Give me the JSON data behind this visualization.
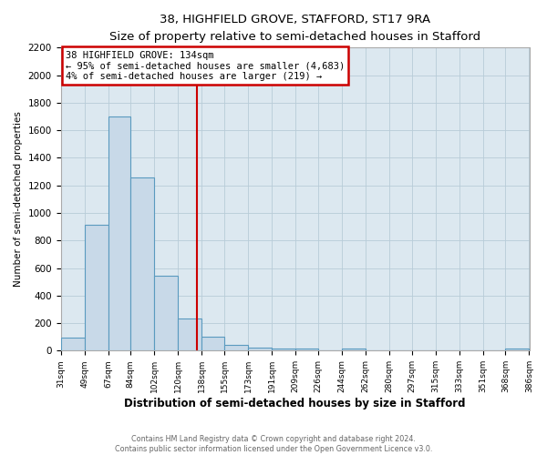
{
  "title": "38, HIGHFIELD GROVE, STAFFORD, ST17 9RA",
  "subtitle": "Size of property relative to semi-detached houses in Stafford",
  "xlabel": "Distribution of semi-detached houses by size in Stafford",
  "ylabel": "Number of semi-detached properties",
  "bar_edges": [
    31,
    49,
    67,
    84,
    102,
    120,
    138,
    155,
    173,
    191,
    209,
    226,
    244,
    262,
    280,
    297,
    315,
    333,
    351,
    368,
    386
  ],
  "bar_heights": [
    97,
    912,
    1697,
    1258,
    543,
    236,
    103,
    42,
    20,
    17,
    14,
    0,
    13,
    0,
    0,
    0,
    0,
    0,
    0,
    13
  ],
  "bar_color": "#c8d9e8",
  "bar_edge_color": "#5a9abf",
  "property_size": 134,
  "vline_color": "#cc0000",
  "annotation_title": "38 HIGHFIELD GROVE: 134sqm",
  "annotation_line1": "← 95% of semi-detached houses are smaller (4,683)",
  "annotation_line2": "4% of semi-detached houses are larger (219) →",
  "annotation_box_color": "#ffffff",
  "annotation_box_edge": "#cc0000",
  "ylim": [
    0,
    2200
  ],
  "yticks": [
    0,
    200,
    400,
    600,
    800,
    1000,
    1200,
    1400,
    1600,
    1800,
    2000,
    2200
  ],
  "tick_labels": [
    "31sqm",
    "49sqm",
    "67sqm",
    "84sqm",
    "102sqm",
    "120sqm",
    "138sqm",
    "155sqm",
    "173sqm",
    "191sqm",
    "209sqm",
    "226sqm",
    "244sqm",
    "262sqm",
    "280sqm",
    "297sqm",
    "315sqm",
    "333sqm",
    "351sqm",
    "368sqm",
    "386sqm"
  ],
  "footer1": "Contains HM Land Registry data © Crown copyright and database right 2024.",
  "footer2": "Contains public sector information licensed under the Open Government Licence v3.0.",
  "bg_color": "#ffffff",
  "plot_bg_color": "#dce8f0",
  "grid_color": "#b8ccd8"
}
